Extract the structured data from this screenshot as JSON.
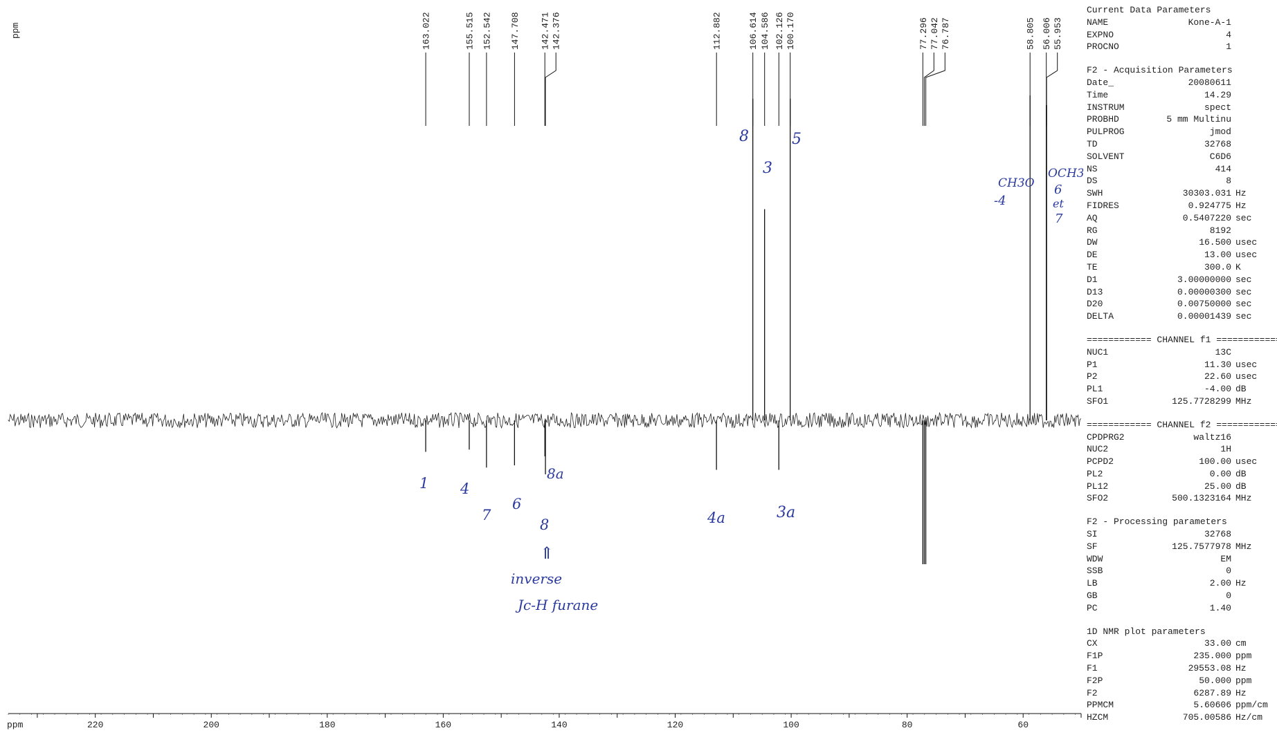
{
  "chart_data": {
    "type": "line",
    "title": "",
    "xlabel": "ppm",
    "ylabel": "ppm",
    "xlim": [
      235,
      50
    ],
    "x_ticks": [
      220,
      200,
      180,
      160,
      140,
      120,
      100,
      80,
      60
    ],
    "grid": false,
    "peaks": [
      {
        "ppm": 163.022,
        "label": "163.022",
        "direction": "down",
        "intensity": 0.14,
        "assignment": "1"
      },
      {
        "ppm": 155.515,
        "label": "155.515",
        "direction": "down",
        "intensity": 0.13,
        "assignment": "4"
      },
      {
        "ppm": 152.542,
        "label": "152.542",
        "direction": "down",
        "intensity": 0.21,
        "assignment": "7"
      },
      {
        "ppm": 147.708,
        "label": "147.708",
        "direction": "down",
        "intensity": 0.2,
        "assignment": "6"
      },
      {
        "ppm": 142.471,
        "label": "142.471",
        "direction": "down",
        "intensity": 0.16,
        "assignment": "8a"
      },
      {
        "ppm": 142.376,
        "label": "142.376",
        "direction": "down",
        "intensity": 0.24,
        "assignment": ""
      },
      {
        "ppm": 112.882,
        "label": "112.882",
        "direction": "down",
        "intensity": 0.22,
        "assignment": "4a"
      },
      {
        "ppm": 106.614,
        "label": "106.614",
        "direction": "up",
        "intensity": 0.99,
        "assignment": "8"
      },
      {
        "ppm": 104.586,
        "label": "104.586",
        "direction": "up",
        "intensity": 0.65,
        "assignment": "3"
      },
      {
        "ppm": 102.126,
        "label": "102.126",
        "direction": "down",
        "intensity": 0.22,
        "assignment": "3a"
      },
      {
        "ppm": 100.17,
        "label": "100.170",
        "direction": "up",
        "intensity": 0.99,
        "assignment": "5"
      },
      {
        "ppm": 77.296,
        "label": "77.296",
        "direction": "down",
        "intensity": 0.64,
        "assignment": ""
      },
      {
        "ppm": 77.042,
        "label": "77.042",
        "direction": "down",
        "intensity": 0.64,
        "assignment": ""
      },
      {
        "ppm": 76.787,
        "label": "76.787",
        "direction": "down",
        "intensity": 0.64,
        "assignment": ""
      },
      {
        "ppm": 58.805,
        "label": "58.805",
        "direction": "up",
        "intensity": 1.0,
        "assignment": "CH3O-4"
      },
      {
        "ppm": 56.006,
        "label": "56.006",
        "direction": "up",
        "intensity": 0.97,
        "assignment": "OCH3 6 et 7"
      },
      {
        "ppm": 55.953,
        "label": "55.953",
        "direction": "up",
        "intensity": 0.97,
        "assignment": ""
      }
    ],
    "annotations": [
      {
        "text": "8",
        "ppm": 106.6
      },
      {
        "text": "3",
        "ppm": 104.6
      },
      {
        "text": "5",
        "ppm": 100.2
      },
      {
        "text": "1",
        "ppm": 163.0
      },
      {
        "text": "4",
        "ppm": 155.5
      },
      {
        "text": "7",
        "ppm": 152.5
      },
      {
        "text": "6",
        "ppm": 147.7
      },
      {
        "text": "8a",
        "ppm": 142.4
      },
      {
        "text": "8",
        "ppm": 142.4
      },
      {
        "text": "⇑",
        "ppm": 142.4
      },
      {
        "text": "inverse",
        "ppm": 142.0
      },
      {
        "text": "Jc-H furane",
        "ppm": 140.0
      },
      {
        "text": "4a",
        "ppm": 112.9
      },
      {
        "text": "3a",
        "ppm": 102.1
      },
      {
        "text": "CH3O",
        "ppm": 61.0
      },
      {
        "text": "-4",
        "ppm": 61.0
      },
      {
        "text": "OCH3",
        "ppm": 56.0
      },
      {
        "text": "6",
        "ppm": 56.0
      },
      {
        "text": "et",
        "ppm": 56.0
      },
      {
        "text": "7",
        "ppm": 56.0
      }
    ]
  },
  "params": [
    {
      "title": "Current Data Parameters",
      "rows": [
        {
          "k": "NAME",
          "v": "Kone-A-1",
          "u": ""
        },
        {
          "k": "EXPNO",
          "v": "4",
          "u": ""
        },
        {
          "k": "PROCNO",
          "v": "1",
          "u": ""
        }
      ]
    },
    {
      "title": "F2 - Acquisition Parameters",
      "rows": [
        {
          "k": "Date_",
          "v": "20080611",
          "u": ""
        },
        {
          "k": "Time",
          "v": "14.29",
          "u": ""
        },
        {
          "k": "INSTRUM",
          "v": "spect",
          "u": ""
        },
        {
          "k": "PROBHD",
          "v": "5 mm Multinu",
          "u": ""
        },
        {
          "k": "PULPROG",
          "v": "jmod",
          "u": ""
        },
        {
          "k": "TD",
          "v": "32768",
          "u": ""
        },
        {
          "k": "SOLVENT",
          "v": "C6D6",
          "u": ""
        },
        {
          "k": "NS",
          "v": "414",
          "u": ""
        },
        {
          "k": "DS",
          "v": "8",
          "u": ""
        },
        {
          "k": "SWH",
          "v": "30303.031",
          "u": "Hz"
        },
        {
          "k": "FIDRES",
          "v": "0.924775",
          "u": "Hz"
        },
        {
          "k": "AQ",
          "v": "0.5407220",
          "u": "sec"
        },
        {
          "k": "RG",
          "v": "8192",
          "u": ""
        },
        {
          "k": "DW",
          "v": "16.500",
          "u": "usec"
        },
        {
          "k": "DE",
          "v": "13.00",
          "u": "usec"
        },
        {
          "k": "TE",
          "v": "300.0",
          "u": "K"
        },
        {
          "k": "D1",
          "v": "3.00000000",
          "u": "sec"
        },
        {
          "k": "D13",
          "v": "0.00000300",
          "u": "sec"
        },
        {
          "k": "D20",
          "v": "0.00750000",
          "u": "sec"
        },
        {
          "k": "DELTA",
          "v": "0.00001439",
          "u": "sec"
        }
      ]
    },
    {
      "title": "============ CHANNEL f1 ============",
      "rows": [
        {
          "k": "NUC1",
          "v": "13C",
          "u": ""
        },
        {
          "k": "P1",
          "v": "11.30",
          "u": "usec"
        },
        {
          "k": "P2",
          "v": "22.60",
          "u": "usec"
        },
        {
          "k": "PL1",
          "v": "-4.00",
          "u": "dB"
        },
        {
          "k": "SFO1",
          "v": "125.7728299",
          "u": "MHz"
        }
      ]
    },
    {
      "title": "============ CHANNEL f2 ============",
      "rows": [
        {
          "k": "CPDPRG2",
          "v": "waltz16",
          "u": ""
        },
        {
          "k": "NUC2",
          "v": "1H",
          "u": ""
        },
        {
          "k": "PCPD2",
          "v": "100.00",
          "u": "usec"
        },
        {
          "k": "PL2",
          "v": "0.00",
          "u": "dB"
        },
        {
          "k": "PL12",
          "v": "25.00",
          "u": "dB"
        },
        {
          "k": "SFO2",
          "v": "500.1323164",
          "u": "MHz"
        }
      ]
    },
    {
      "title": "F2 - Processing parameters",
      "rows": [
        {
          "k": "SI",
          "v": "32768",
          "u": ""
        },
        {
          "k": "SF",
          "v": "125.7577978",
          "u": "MHz"
        },
        {
          "k": "WDW",
          "v": "EM",
          "u": ""
        },
        {
          "k": "SSB",
          "v": "0",
          "u": ""
        },
        {
          "k": "LB",
          "v": "2.00",
          "u": "Hz"
        },
        {
          "k": "GB",
          "v": "0",
          "u": ""
        },
        {
          "k": "PC",
          "v": "1.40",
          "u": ""
        }
      ]
    },
    {
      "title": "1D NMR plot parameters",
      "rows": [
        {
          "k": "CX",
          "v": "33.00",
          "u": "cm"
        },
        {
          "k": "F1P",
          "v": "235.000",
          "u": "ppm"
        },
        {
          "k": "F1",
          "v": "29553.08",
          "u": "Hz"
        },
        {
          "k": "F2P",
          "v": "50.000",
          "u": "ppm"
        },
        {
          "k": "F2",
          "v": "6287.89",
          "u": "Hz"
        },
        {
          "k": "PPMCM",
          "v": "5.60606",
          "u": "ppm/cm"
        },
        {
          "k": "HZCM",
          "v": "705.00586",
          "u": "Hz/cm"
        }
      ]
    }
  ]
}
